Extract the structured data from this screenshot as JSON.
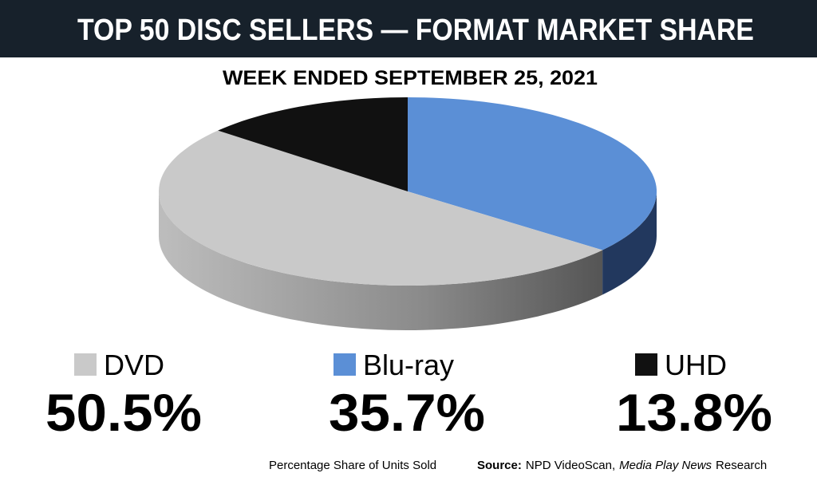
{
  "chart_data": {
    "type": "pie",
    "title": "TOP 50 DISC SELLERS — FORMAT MARKET SHARE",
    "subtitle": "WEEK ENDED SEPTEMBER 25, 2021",
    "categories": [
      "Blu-ray",
      "DVD",
      "UHD"
    ],
    "values": [
      35.7,
      50.5,
      13.8
    ],
    "value_labels": [
      "35.7%",
      "50.5%",
      "13.8%"
    ],
    "colors": [
      "#5b8fd6",
      "#c9c9c9",
      "#111111"
    ],
    "footnote": "Percentage Share of Units Sold",
    "source_label": "Source:",
    "source": "NPD VideoScan,",
    "source_publication": "Media Play News",
    "source_suffix": "Research"
  }
}
